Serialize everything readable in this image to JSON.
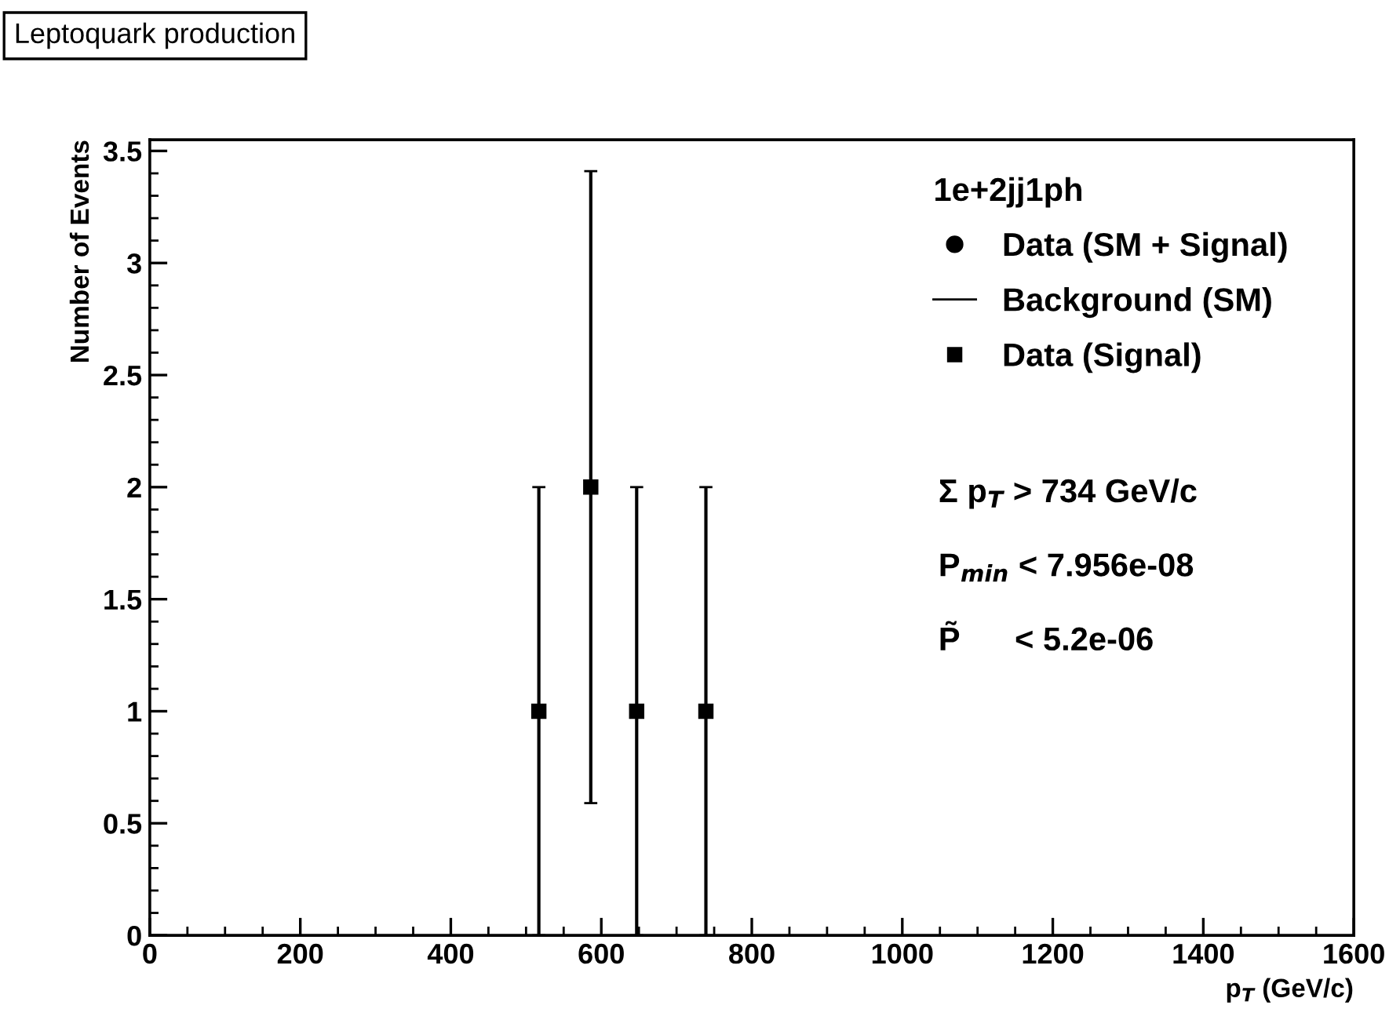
{
  "chart_data": {
    "type": "scatter",
    "title": "Leptoquark production",
    "xlabel": "p$_{T}$ (GeV/c)",
    "ylabel": "Number of Events",
    "legend_title": "1e+2jj1ph",
    "x": [
      517,
      586,
      647,
      739
    ],
    "series": [
      {
        "name": "Data (SM + Signal)",
        "color": "#000000",
        "marker": "circle",
        "values": [
          null,
          null,
          null,
          null
        ]
      },
      {
        "name": "Background (SM)",
        "type": "line",
        "color": "#000000",
        "values": [
          null,
          null,
          null,
          null
        ]
      },
      {
        "name": "Data (Signal)",
        "color": "#000000",
        "marker": "square",
        "values": [
          1,
          2,
          1,
          1
        ],
        "errors": [
          1,
          1.41,
          1,
          1
        ]
      }
    ],
    "xlim": [
      0,
      1600
    ],
    "xticks": [
      0,
      200,
      400,
      600,
      800,
      1000,
      1200,
      1400,
      1600
    ],
    "ylim": [
      0,
      3.55
    ],
    "yticks": [
      0,
      0.5,
      1,
      1.5,
      2,
      2.5,
      3,
      3.5
    ],
    "grid": false,
    "legend": "top right",
    "annotations": [
      "Σ p$_{T}$ > 734 GeV/c",
      "P$_{min}$ < 7.956e-08",
      "P̃      < 5.2e-06"
    ]
  }
}
